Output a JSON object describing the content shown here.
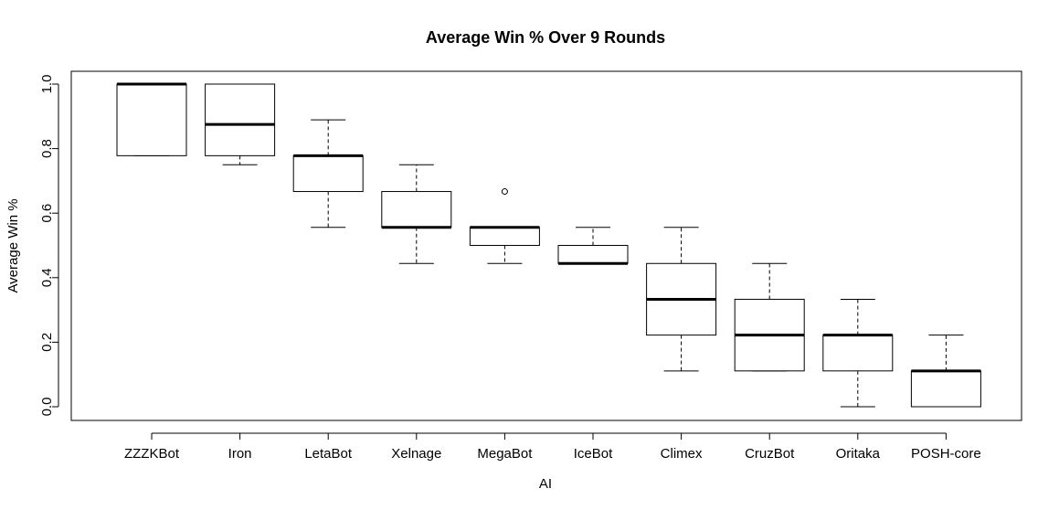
{
  "chart_data": {
    "type": "boxplot",
    "title": "Average Win % Over 9 Rounds",
    "xlabel": "AI",
    "ylabel": "Average Win %",
    "ylim": [
      -0.04,
      1.04
    ],
    "yticks": [
      "0.0",
      "0.2",
      "0.4",
      "0.6",
      "0.8",
      "1.0"
    ],
    "grid": false,
    "legend": "none",
    "categories": [
      "ZZZKBot",
      "Iron",
      "LetaBot",
      "Xelnage",
      "MegaBot",
      "IceBot",
      "Climex",
      "CruzBot",
      "Oritaka",
      "POSH-core"
    ],
    "boxes": [
      {
        "name": "ZZZKBot",
        "min": 0.778,
        "q1": 0.778,
        "median": 1.0,
        "q3": 1.0,
        "max": 1.0,
        "outliers": []
      },
      {
        "name": "Iron",
        "min": 0.75,
        "q1": 0.778,
        "median": 0.875,
        "q3": 1.0,
        "max": 1.0,
        "outliers": []
      },
      {
        "name": "LetaBot",
        "min": 0.556,
        "q1": 0.667,
        "median": 0.778,
        "q3": 0.778,
        "max": 0.889,
        "outliers": []
      },
      {
        "name": "Xelnage",
        "min": 0.444,
        "q1": 0.556,
        "median": 0.556,
        "q3": 0.667,
        "max": 0.75,
        "outliers": []
      },
      {
        "name": "MegaBot",
        "min": 0.444,
        "q1": 0.5,
        "median": 0.556,
        "q3": 0.556,
        "max": 0.556,
        "outliers": [
          0.667
        ]
      },
      {
        "name": "IceBot",
        "min": 0.444,
        "q1": 0.444,
        "median": 0.444,
        "q3": 0.5,
        "max": 0.556,
        "outliers": []
      },
      {
        "name": "Climex",
        "min": 0.111,
        "q1": 0.222,
        "median": 0.333,
        "q3": 0.444,
        "max": 0.556,
        "outliers": []
      },
      {
        "name": "CruzBot",
        "min": 0.111,
        "q1": 0.111,
        "median": 0.222,
        "q3": 0.333,
        "max": 0.444,
        "outliers": []
      },
      {
        "name": "Oritaka",
        "min": 0.0,
        "q1": 0.111,
        "median": 0.222,
        "q3": 0.222,
        "max": 0.333,
        "outliers": []
      },
      {
        "name": "POSH-core",
        "min": 0.0,
        "q1": 0.0,
        "median": 0.111,
        "q3": 0.111,
        "max": 0.222,
        "outliers": []
      }
    ],
    "colors": {
      "box_fill": "#ffffff",
      "stroke": "#000000"
    }
  }
}
